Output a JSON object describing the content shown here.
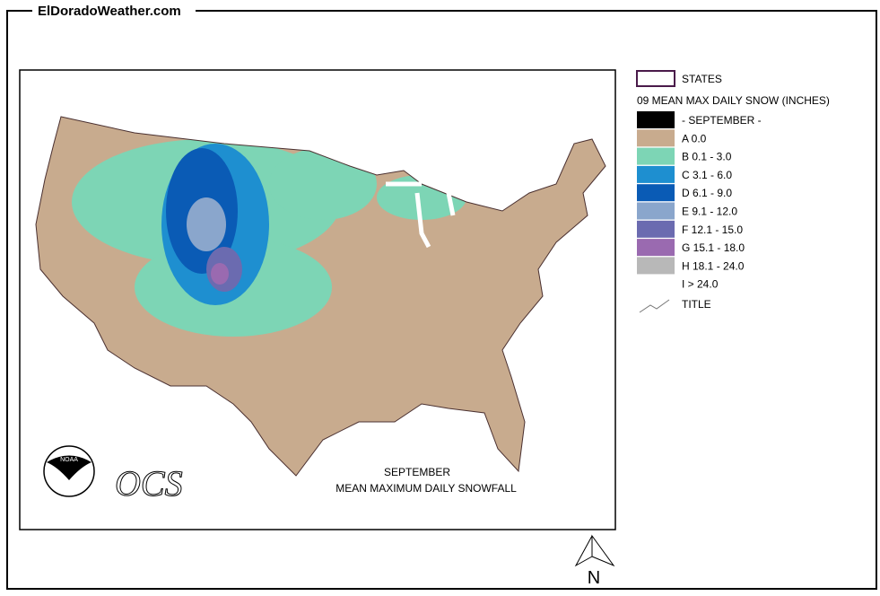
{
  "header": {
    "site": "ElDoradoWeather.com"
  },
  "legend": {
    "states": "STATES",
    "heading": "09 MEAN MAX DAILY SNOW (INCHES)",
    "items": [
      {
        "label": "- SEPTEMBER -",
        "color": "#000000"
      },
      {
        "label": "A 0.0",
        "color": "#c8ab8e"
      },
      {
        "label": "B 0.1 - 3.0",
        "color": "#7dd5b5"
      },
      {
        "label": "C 3.1 - 6.0",
        "color": "#1e8fd0"
      },
      {
        "label": "D 6.1 - 9.0",
        "color": "#0a5bb5"
      },
      {
        "label": "E 9.1 - 12.0",
        "color": "#8aa6cc"
      },
      {
        "label": "F 12.1 - 15.0",
        "color": "#6b6bb0"
      },
      {
        "label": "G 15.1 - 18.0",
        "color": "#9a6ab0"
      },
      {
        "label": "H 18.1 - 24.0",
        "color": "#b8b8b8"
      },
      {
        "label": "I > 24.0"
      }
    ],
    "title_entry": "TITLE"
  },
  "map": {
    "title_line1": "SEPTEMBER",
    "title_line2": "MEAN MAXIMUM DAILY SNOWFALL"
  },
  "logos": {
    "noaa": "NOAA",
    "ocs": "OCS"
  },
  "north": "N"
}
